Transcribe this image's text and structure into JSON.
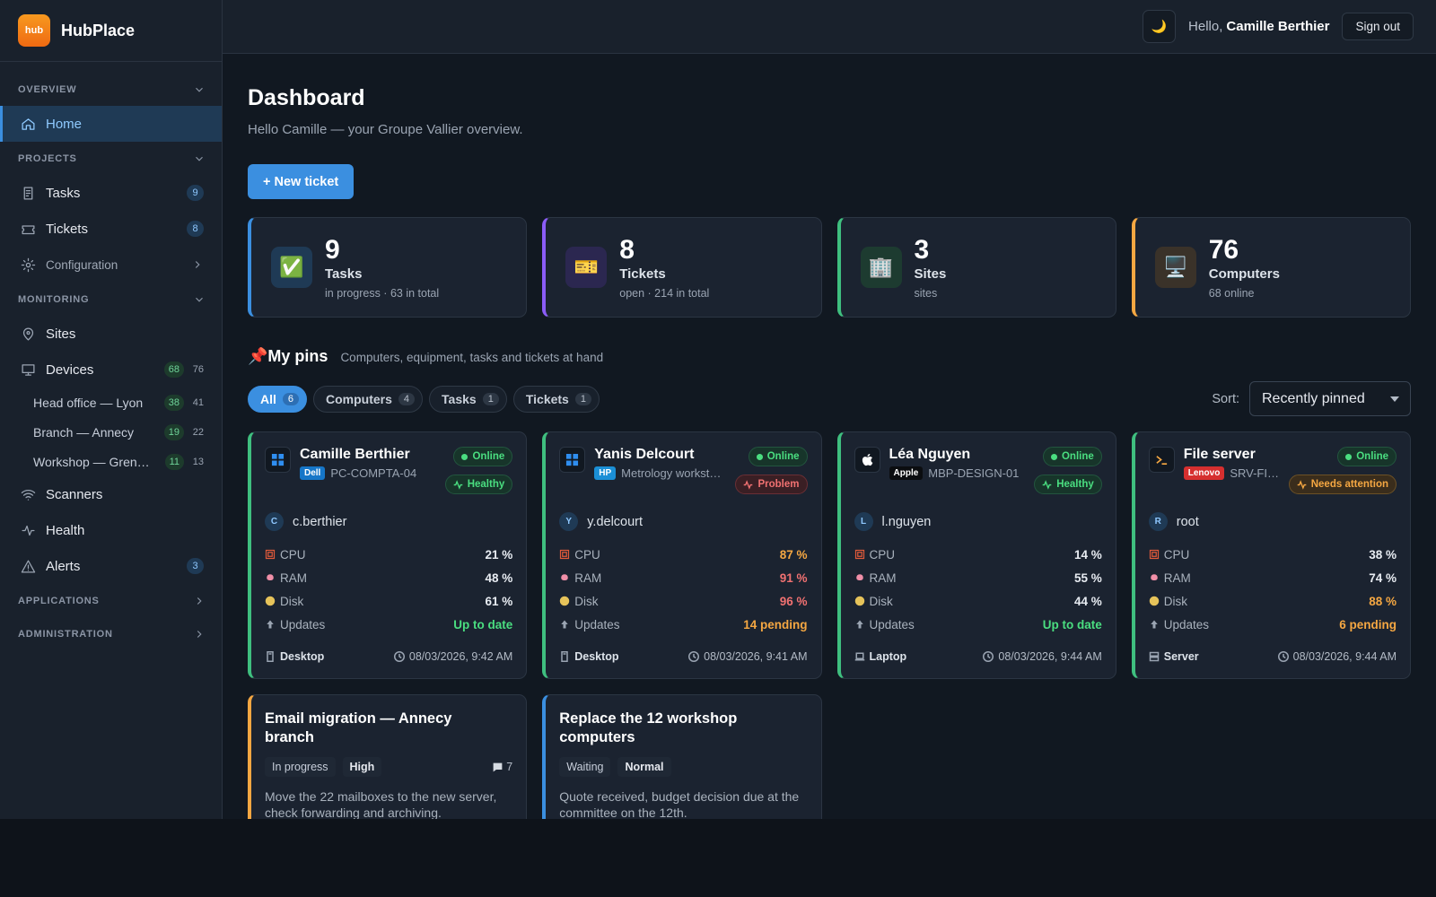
{
  "header": {
    "theme_icon": "🌙",
    "greeting": "Hello,",
    "user": "Camille Berthier",
    "sign_out": "Sign out"
  },
  "sidebar": {
    "logo": "hub",
    "brand": "HubPlace",
    "groups": [
      {
        "title": "OVERVIEW",
        "items": [
          {
            "label": "Home",
            "active": true
          }
        ]
      },
      {
        "title": "PROJECTS",
        "items": [
          {
            "label": "Tasks",
            "badge": 9
          },
          {
            "label": "Tickets",
            "badge": 8
          },
          {
            "label": "Configuration",
            "expandable": true
          }
        ]
      },
      {
        "title": "MONITORING",
        "items": [
          {
            "label": "Sites"
          },
          {
            "label": "Devices",
            "badge": 68,
            "badge_style": "green",
            "count": 76,
            "children": [
              {
                "label": "Head office — Lyon",
                "badge": 38,
                "count": 41
              },
              {
                "label": "Branch — Annecy",
                "badge": 19,
                "count": 22
              },
              {
                "label": "Workshop — Gren…",
                "badge": 11,
                "count": 13
              }
            ]
          },
          {
            "label": "Scanners"
          },
          {
            "label": "Health"
          },
          {
            "label": "Alerts",
            "badge": 3
          }
        ]
      },
      {
        "title": "APPLICATIONS",
        "collapsed": true
      },
      {
        "title": "ADMINISTRATION",
        "collapsed": true
      }
    ]
  },
  "main": {
    "title": "Dashboard",
    "subtitle": "Hello Camille — your Groupe Vallier overview.",
    "new_button": "+ New ticket",
    "stats": [
      {
        "icon": "✅",
        "value": 9,
        "label": "Tasks",
        "note": "in progress · 63 in total",
        "color": "#3b8fe0",
        "tint": "#1f3a55"
      },
      {
        "icon": "🎫",
        "value": 8,
        "label": "Tickets",
        "note": "open · 214 in total",
        "color": "#8b5cf6",
        "tint": "#2b2750"
      },
      {
        "icon": "🏢",
        "value": 3,
        "label": "Sites",
        "note": "sites",
        "color": "#3fbf7f",
        "tint": "#1d3b30"
      },
      {
        "icon": "🖥️",
        "value": 76,
        "label": "Computers",
        "note": "68 online",
        "color": "#f5a742",
        "tint": "#3a3229"
      }
    ],
    "pins": {
      "icon": "📌",
      "title": "My pins",
      "subtitle": "Computers, equipment, tasks and tickets at hand",
      "filters": [
        {
          "label": "All",
          "count": 6,
          "active": true
        },
        {
          "label": "Computers",
          "count": 4
        },
        {
          "label": "Tasks",
          "count": 1
        },
        {
          "label": "Tickets",
          "count": 1
        }
      ],
      "sort_label": "Sort:",
      "sort_value": "Recently pinned",
      "devices": [
        {
          "name": "Camille Berthier",
          "brand": "Dell",
          "brand_color": "#1676c8",
          "host": "PC-COMPTA-04",
          "status": "Online",
          "health": "Healthy",
          "health_level": "good",
          "initial": "C",
          "user": "c.berthier",
          "metrics": [
            {
              "label": "CPU",
              "value": "21 %",
              "level": "ok"
            },
            {
              "label": "RAM",
              "value": "48 %",
              "level": "ok"
            },
            {
              "label": "Disk",
              "value": "61 %",
              "level": "ok"
            },
            {
              "label": "Updates",
              "value": "Up to date",
              "level": "good"
            }
          ],
          "kind": "Desktop",
          "time": "08/03/2026, 9:42 AM"
        },
        {
          "name": "Yanis Delcourt",
          "brand": "HP",
          "brand_color": "#1b8fd6",
          "host": "Metrology workst…",
          "status": "Online",
          "health": "Problem",
          "health_level": "bad",
          "initial": "Y",
          "user": "y.delcourt",
          "metrics": [
            {
              "label": "CPU",
              "value": "87 %",
              "level": "warn"
            },
            {
              "label": "RAM",
              "value": "91 %",
              "level": "bad"
            },
            {
              "label": "Disk",
              "value": "96 %",
              "level": "bad"
            },
            {
              "label": "Updates",
              "value": "14 pending",
              "level": "warn"
            }
          ],
          "kind": "Desktop",
          "time": "08/03/2026, 9:41 AM"
        },
        {
          "name": "Léa Nguyen",
          "brand": "Apple",
          "brand_color": "#0b0d10",
          "host": "MBP-DESIGN-01",
          "status": "Online",
          "health": "Healthy",
          "health_level": "good",
          "initial": "L",
          "user": "l.nguyen",
          "metrics": [
            {
              "label": "CPU",
              "value": "14 %",
              "level": "ok"
            },
            {
              "label": "RAM",
              "value": "55 %",
              "level": "ok"
            },
            {
              "label": "Disk",
              "value": "44 %",
              "level": "ok"
            },
            {
              "label": "Updates",
              "value": "Up to date",
              "level": "good"
            }
          ],
          "kind": "Laptop",
          "time": "08/03/2026, 9:44 AM"
        },
        {
          "name": "File server",
          "brand": "Lenovo",
          "brand_color": "#d62f2f",
          "host": "SRV-FI…",
          "status": "Online",
          "health": "Needs attention",
          "health_level": "warn",
          "initial": "R",
          "user": "root",
          "metrics": [
            {
              "label": "CPU",
              "value": "38 %",
              "level": "ok"
            },
            {
              "label": "RAM",
              "value": "74 %",
              "level": "ok"
            },
            {
              "label": "Disk",
              "value": "88 %",
              "level": "warn"
            },
            {
              "label": "Updates",
              "value": "6 pending",
              "level": "warn"
            }
          ],
          "kind": "Server",
          "time": "08/03/2026, 9:44 AM"
        }
      ],
      "tasks": [
        {
          "title": "Email migration — Annecy branch",
          "status": "In progress",
          "priority": "High",
          "comments": 7,
          "description": "Move the 22 mailboxes to the new server, check forwarding and archiving.",
          "color": "#f5a742"
        },
        {
          "title": "Replace the 12 workshop computers",
          "status": "Waiting",
          "priority": "Normal",
          "description": "Quote received, budget decision due at the committee on the 12th.",
          "color": "#3b8fe0"
        }
      ]
    }
  }
}
